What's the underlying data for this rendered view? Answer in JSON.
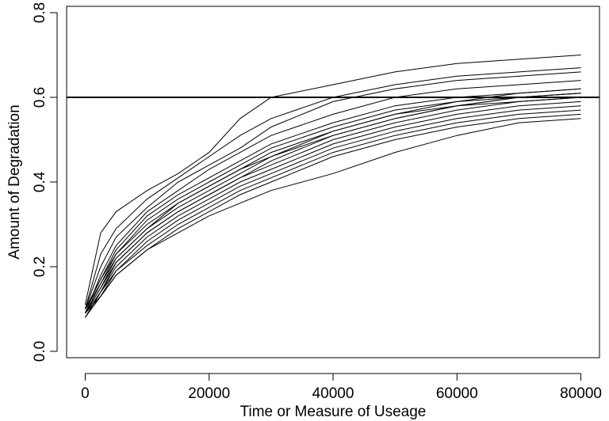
{
  "chart_data": {
    "type": "line",
    "xlabel": "Time or Measure of Useage",
    "ylabel": "Amount of Degradation",
    "xlim": [
      -3000,
      83000
    ],
    "ylim": [
      -0.015,
      0.815
    ],
    "x_ticks": [
      0,
      20000,
      40000,
      60000,
      80000
    ],
    "y_ticks": [
      0.0,
      0.2,
      0.4,
      0.6,
      0.8
    ],
    "x_tick_labels": [
      "0",
      "20000",
      "40000",
      "60000",
      "80000"
    ],
    "y_tick_labels": [
      "0.0",
      "0.2",
      "0.4",
      "0.6",
      "0.8"
    ],
    "grid": false,
    "line_color": "#000000",
    "threshold": 0.6,
    "x": [
      0,
      2500,
      5000,
      10000,
      15000,
      20000,
      25000,
      30000,
      40000,
      50000,
      60000,
      70000,
      80000
    ],
    "series": [
      {
        "values": [
          0.11,
          0.28,
          0.33,
          0.38,
          0.42,
          0.47,
          0.55,
          0.6,
          0.63,
          0.66,
          0.68,
          0.69,
          0.7
        ]
      },
      {
        "values": [
          0.1,
          0.23,
          0.29,
          0.36,
          0.41,
          0.46,
          0.51,
          0.55,
          0.6,
          0.63,
          0.65,
          0.66,
          0.67
        ]
      },
      {
        "values": [
          0.1,
          0.2,
          0.27,
          0.34,
          0.4,
          0.44,
          0.48,
          0.53,
          0.59,
          0.62,
          0.64,
          0.65,
          0.66
        ]
      },
      {
        "values": [
          0.09,
          0.18,
          0.25,
          0.33,
          0.38,
          0.43,
          0.47,
          0.51,
          0.56,
          0.6,
          0.62,
          0.63,
          0.64
        ]
      },
      {
        "values": [
          0.1,
          0.17,
          0.24,
          0.32,
          0.37,
          0.41,
          0.45,
          0.49,
          0.54,
          0.58,
          0.6,
          0.61,
          0.62
        ]
      },
      {
        "values": [
          0.09,
          0.16,
          0.23,
          0.31,
          0.36,
          0.4,
          0.44,
          0.48,
          0.53,
          0.57,
          0.59,
          0.61,
          0.62
        ]
      },
      {
        "values": [
          0.1,
          0.17,
          0.23,
          0.3,
          0.35,
          0.39,
          0.43,
          0.47,
          0.52,
          0.56,
          0.59,
          0.6,
          0.61
        ]
      },
      {
        "values": [
          0.09,
          0.15,
          0.22,
          0.29,
          0.35,
          0.39,
          0.43,
          0.46,
          0.52,
          0.56,
          0.58,
          0.6,
          0.61
        ]
      },
      {
        "values": [
          0.1,
          0.16,
          0.22,
          0.29,
          0.34,
          0.38,
          0.42,
          0.46,
          0.51,
          0.55,
          0.58,
          0.6,
          0.61
        ]
      },
      {
        "values": [
          0.08,
          0.14,
          0.21,
          0.28,
          0.33,
          0.37,
          0.41,
          0.45,
          0.51,
          0.55,
          0.58,
          0.59,
          0.6
        ]
      },
      {
        "values": [
          0.09,
          0.15,
          0.21,
          0.28,
          0.33,
          0.37,
          0.41,
          0.44,
          0.5,
          0.54,
          0.57,
          0.59,
          0.6
        ]
      },
      {
        "values": [
          0.09,
          0.14,
          0.2,
          0.27,
          0.32,
          0.36,
          0.4,
          0.43,
          0.49,
          0.53,
          0.56,
          0.58,
          0.59
        ]
      },
      {
        "values": [
          0.08,
          0.14,
          0.19,
          0.26,
          0.31,
          0.35,
          0.39,
          0.42,
          0.48,
          0.52,
          0.55,
          0.57,
          0.58
        ]
      },
      {
        "values": [
          0.09,
          0.13,
          0.19,
          0.25,
          0.3,
          0.34,
          0.38,
          0.41,
          0.47,
          0.51,
          0.54,
          0.56,
          0.57
        ]
      },
      {
        "values": [
          0.09,
          0.13,
          0.18,
          0.24,
          0.29,
          0.33,
          0.37,
          0.4,
          0.46,
          0.5,
          0.53,
          0.55,
          0.56
        ]
      },
      {
        "values": [
          0.08,
          0.13,
          0.18,
          0.24,
          0.28,
          0.32,
          0.35,
          0.38,
          0.42,
          0.47,
          0.51,
          0.54,
          0.55
        ]
      }
    ]
  }
}
